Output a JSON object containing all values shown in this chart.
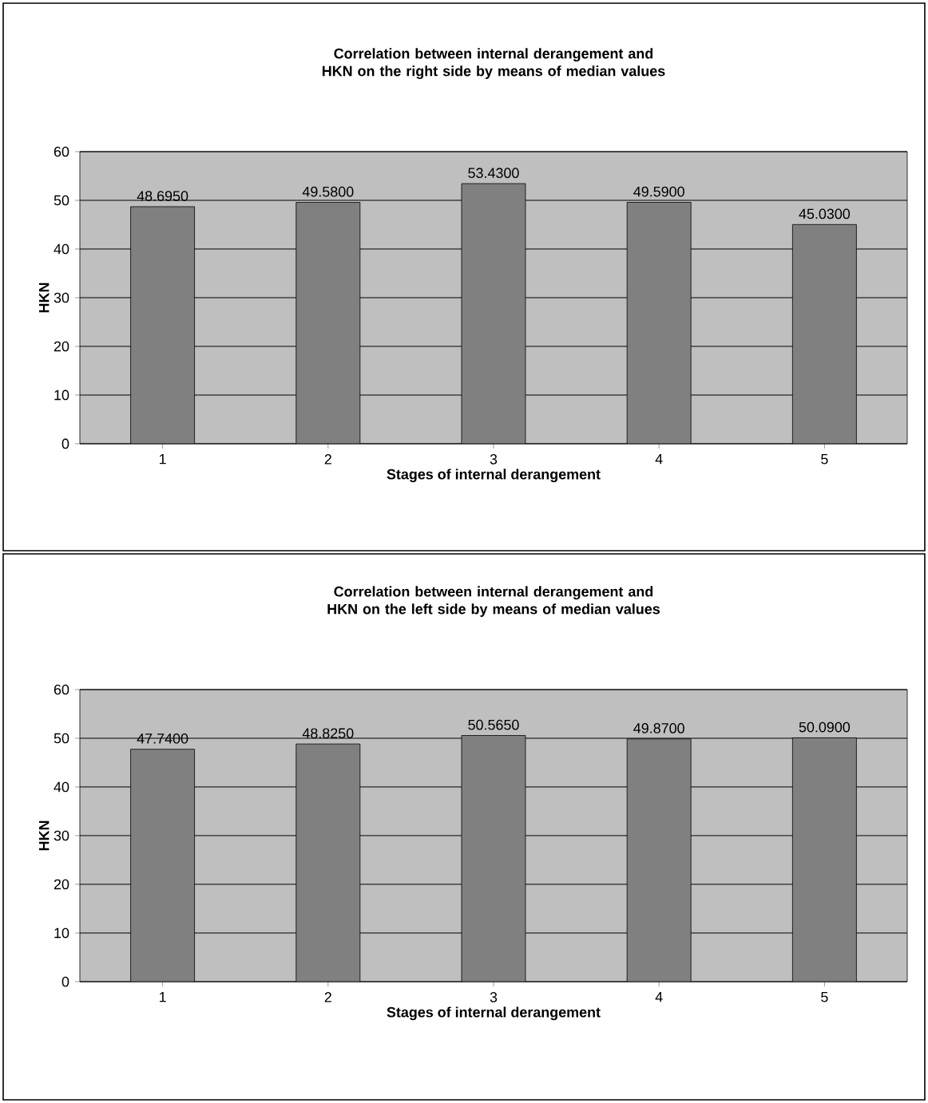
{
  "chart_data": [
    {
      "type": "bar",
      "title": "Correlation between internal derangement and HKN on the right side by means of median values",
      "xlabel": "Stages of internal derangement",
      "ylabel": "HKN",
      "categories": [
        "1",
        "2",
        "3",
        "4",
        "5"
      ],
      "values": [
        48.695,
        49.58,
        53.43,
        49.59,
        45.03
      ],
      "value_labels": [
        "48.6950",
        "49.5800",
        "53.4300",
        "49.5900",
        "45.0300"
      ],
      "color": "#808080",
      "ylim": [
        0,
        60
      ],
      "yticks": [
        0,
        10,
        20,
        30,
        40,
        50,
        60
      ],
      "grid": "y"
    },
    {
      "type": "bar",
      "title": "Correlation between internal derangement and HKN on the left side by means of median values",
      "xlabel": "Stages of internal derangement",
      "ylabel": "HKN",
      "categories": [
        "1",
        "2",
        "3",
        "4",
        "5"
      ],
      "values": [
        47.74,
        48.825,
        50.565,
        49.87,
        50.09
      ],
      "value_labels": [
        "47.7400",
        "48.8250",
        "50.5650",
        "49.8700",
        "50.0900"
      ],
      "color": "#808080",
      "ylim": [
        0,
        60
      ],
      "yticks": [
        0,
        10,
        20,
        30,
        40,
        50,
        60
      ],
      "grid": "y"
    }
  ]
}
